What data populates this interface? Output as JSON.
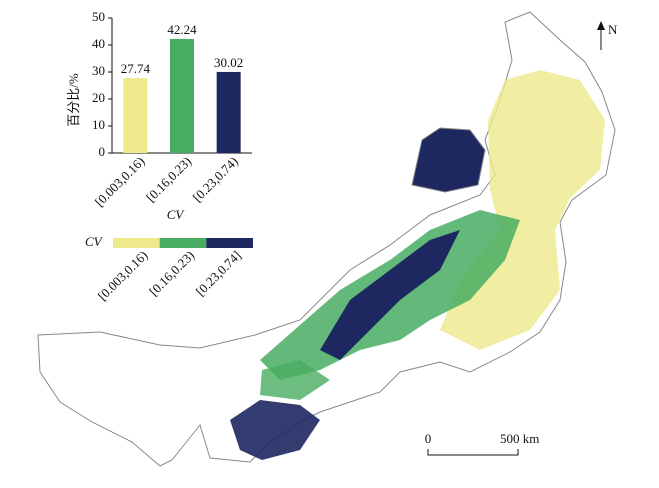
{
  "chart_data": {
    "type": "bar",
    "ylabel": "百分比/%",
    "xlabel": "CV",
    "categories": [
      "[0.003,0.16)",
      "[0.16,0.23)",
      "[0.23,0.74)"
    ],
    "values": [
      27.74,
      42.24,
      30.02
    ],
    "colors": [
      "#eeea8c",
      "#48ad61",
      "#1d2760"
    ],
    "ylim": [
      0,
      50
    ],
    "yticks": [
      0,
      10,
      20,
      30,
      40,
      50
    ]
  },
  "map": {
    "north": "N",
    "legend": {
      "title": "CV",
      "items": [
        {
          "label": "[0.003,0.16)",
          "color": "#eeea8c"
        },
        {
          "label": "[0.16,0.23)",
          "color": "#48ad61"
        },
        {
          "label": "[0.23,0.74]",
          "color": "#1d2760"
        }
      ]
    },
    "scale": {
      "start": "0",
      "end": "500 km"
    }
  }
}
